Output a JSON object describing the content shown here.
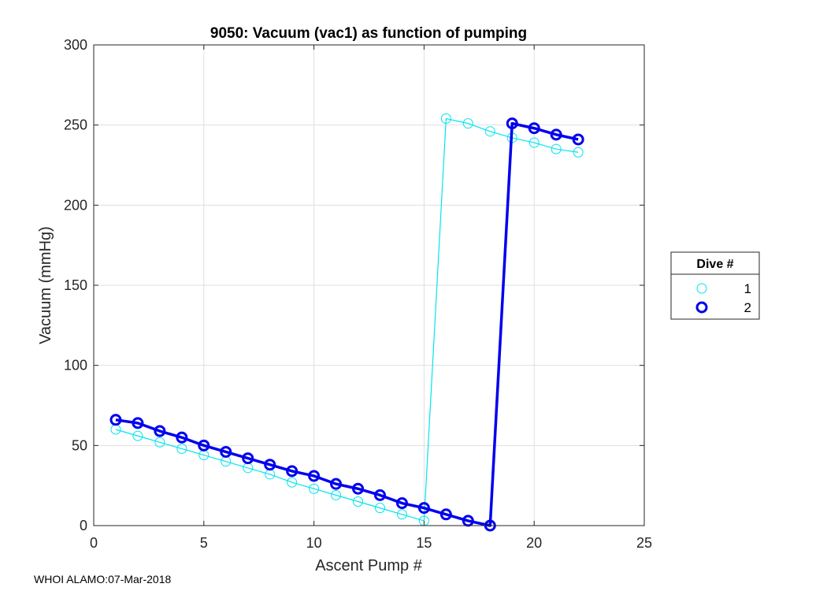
{
  "chart_data": {
    "type": "line",
    "title": "9050: Vacuum (vac1) as function of pumping",
    "xlabel": "Ascent Pump #",
    "ylabel": "Vacuum (mmHg)",
    "xlim": [
      0,
      25
    ],
    "ylim": [
      0,
      300
    ],
    "xticks": [
      0,
      5,
      10,
      15,
      20,
      25
    ],
    "yticks": [
      0,
      50,
      100,
      150,
      200,
      250,
      300
    ],
    "grid": true,
    "legend": {
      "title": "Dive #",
      "placement": "right-outside"
    },
    "series": [
      {
        "name": "1",
        "color": "#00e5ee",
        "marker": "circle",
        "x": [
          1,
          2,
          3,
          4,
          5,
          6,
          7,
          8,
          9,
          10,
          11,
          12,
          13,
          14,
          15,
          16,
          17,
          18,
          19,
          20,
          21,
          22
        ],
        "y": [
          60,
          56,
          52,
          48,
          44,
          40,
          36,
          32,
          27,
          23,
          19,
          15,
          11,
          7,
          3,
          254,
          251,
          246,
          242,
          239,
          235,
          233
        ]
      },
      {
        "name": "2",
        "color": "#0000ee",
        "marker": "circle",
        "x": [
          1,
          2,
          3,
          4,
          5,
          6,
          7,
          8,
          9,
          10,
          11,
          12,
          13,
          14,
          15,
          16,
          17,
          18,
          19,
          20,
          21,
          22
        ],
        "y": [
          66,
          64,
          59,
          55,
          50,
          46,
          42,
          38,
          34,
          31,
          26,
          23,
          19,
          14,
          11,
          7,
          3,
          0,
          251,
          248,
          244,
          241
        ]
      }
    ]
  },
  "footer": "WHOI ALAMO:07-Mar-2018"
}
